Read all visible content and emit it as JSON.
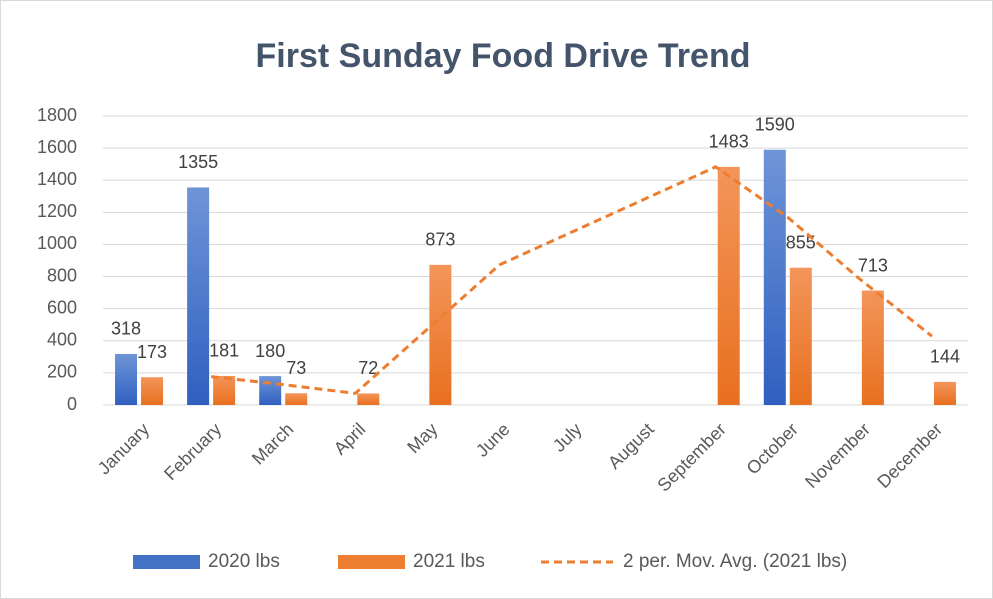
{
  "chart_data": {
    "type": "bar",
    "title": "First Sunday Food Drive Trend",
    "categories": [
      "January",
      "February",
      "March",
      "April",
      "May",
      "June",
      "July",
      "August",
      "September",
      "October",
      "November",
      "December"
    ],
    "series": [
      {
        "name": "2020 lbs",
        "color": "#4472c4",
        "values": [
          318,
          1355,
          180,
          null,
          null,
          null,
          null,
          null,
          null,
          1590,
          null,
          null
        ]
      },
      {
        "name": "2021 lbs",
        "color": "#ed7d31",
        "values": [
          173,
          181,
          73,
          72,
          873,
          null,
          null,
          null,
          1483,
          855,
          713,
          144
        ]
      }
    ],
    "trendline": {
      "name": "2 per. Mov. Avg. (2021 lbs)",
      "color": "#ed7d31",
      "categories": [
        "February",
        "March",
        "April",
        "May",
        "June",
        "September",
        "October",
        "November",
        "December"
      ],
      "values": [
        177,
        127,
        72.5,
        472.5,
        873,
        1483,
        1169,
        784,
        428.5
      ]
    },
    "ylim": [
      0,
      1800
    ],
    "yticks": [
      0,
      200,
      400,
      600,
      800,
      1000,
      1200,
      1400,
      1600,
      1800
    ],
    "grid": true,
    "legend": "bottom"
  }
}
